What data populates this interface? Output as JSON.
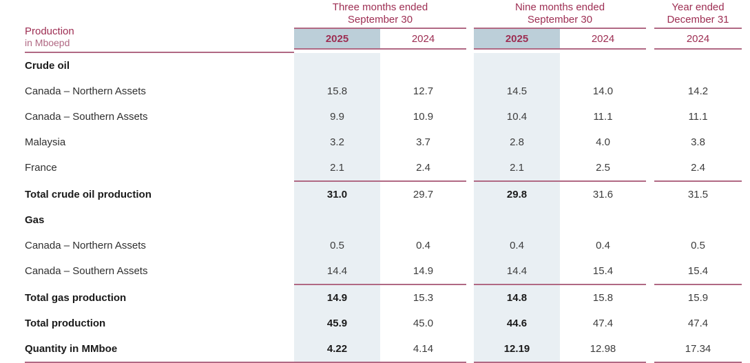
{
  "table": {
    "title": "Production",
    "subtitle": "in Mboepd",
    "col_groups": [
      {
        "label_line1": "Three months ended",
        "label_line2": "September 30",
        "years": [
          "2025",
          "2024"
        ]
      },
      {
        "label_line1": "Nine months ended",
        "label_line2": "September 30",
        "years": [
          "2025",
          "2024"
        ]
      },
      {
        "label_line1": "Year ended",
        "label_line2": "December 31",
        "years": [
          "2024"
        ]
      }
    ],
    "colors": {
      "accent_maroon": "#9d2d52",
      "rule_rose": "#b06883",
      "shaded_header_cell": "#bccfd9",
      "shaded_column": "#e9eff3"
    },
    "rows": [
      {
        "label": "Crude oil",
        "type": "section",
        "values": [
          "",
          "",
          "",
          "",
          ""
        ]
      },
      {
        "label": "Canada – Northern Assets",
        "type": "data",
        "values": [
          "15.8",
          "12.7",
          "14.5",
          "14.0",
          "14.2"
        ]
      },
      {
        "label": "Canada – Southern Assets",
        "type": "data",
        "values": [
          "9.9",
          "10.9",
          "10.4",
          "11.1",
          "11.1"
        ]
      },
      {
        "label": "Malaysia",
        "type": "data",
        "values": [
          "3.2",
          "3.7",
          "2.8",
          "4.0",
          "3.8"
        ]
      },
      {
        "label": "France",
        "type": "data",
        "values": [
          "2.1",
          "2.4",
          "2.1",
          "2.5",
          "2.4"
        ]
      },
      {
        "label": "Total crude oil production",
        "type": "total",
        "values": [
          "31.0",
          "29.7",
          "29.8",
          "31.6",
          "31.5"
        ]
      },
      {
        "label": "Gas",
        "type": "section",
        "values": [
          "",
          "",
          "",
          "",
          ""
        ]
      },
      {
        "label": "Canada – Northern Assets",
        "type": "data",
        "values": [
          "0.5",
          "0.4",
          "0.4",
          "0.4",
          "0.5"
        ]
      },
      {
        "label": "Canada – Southern Assets",
        "type": "data",
        "values": [
          "14.4",
          "14.9",
          "14.4",
          "15.4",
          "15.4"
        ]
      },
      {
        "label": "Total gas production",
        "type": "total",
        "values": [
          "14.9",
          "15.3",
          "14.8",
          "15.8",
          "15.9"
        ]
      },
      {
        "label": "Total production",
        "type": "total",
        "values": [
          "45.9",
          "45.0",
          "44.6",
          "47.4",
          "47.4"
        ]
      },
      {
        "label": "Quantity in MMboe",
        "type": "total",
        "values": [
          "4.22",
          "4.14",
          "12.19",
          "12.98",
          "17.34"
        ]
      }
    ]
  }
}
